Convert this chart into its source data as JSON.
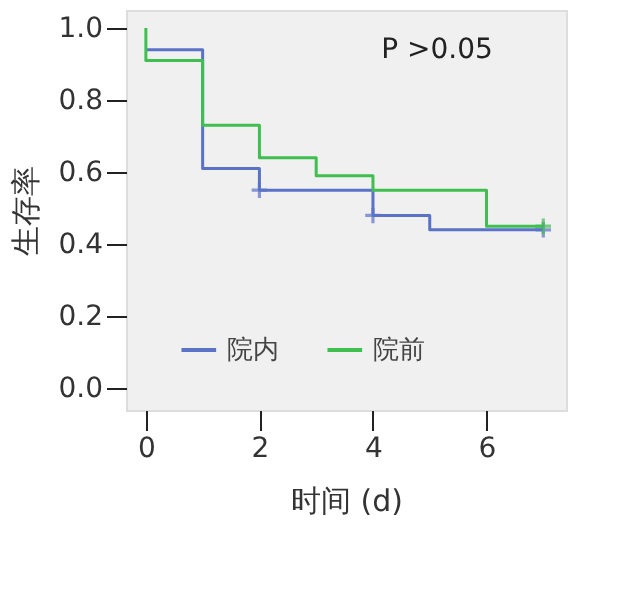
{
  "chart_data": {
    "type": "step",
    "xlabel": "时间 (d)",
    "ylabel": "生存率",
    "annotations": [
      "P >0.05"
    ],
    "series": [
      {
        "name": "院内",
        "color": "#5a72c8",
        "x": [
          0,
          1,
          2,
          4,
          5,
          7
        ],
        "values": [
          0.94,
          0.61,
          0.55,
          0.48,
          0.44,
          0.44
        ]
      },
      {
        "name": "院前",
        "color": "#3fbf4f",
        "x": [
          0,
          0,
          1,
          2,
          3,
          4,
          6,
          7
        ],
        "values": [
          1.0,
          0.91,
          0.73,
          0.64,
          0.59,
          0.55,
          0.45,
          0.45
        ]
      },
      {
        "color": "#5a72c8",
        "type": "scatter",
        "marker": "cross",
        "x": [
          2,
          4,
          7
        ],
        "values": [
          0.55,
          0.48,
          0.44
        ]
      },
      {
        "color": "#3fbf4f",
        "type": "scatter",
        "marker": "cross",
        "x": [
          7
        ],
        "values": [
          0.45
        ]
      }
    ],
    "xlim": [
      -0.35,
      7.4
    ],
    "xticks": [
      0,
      2,
      4,
      6
    ],
    "ylim": [
      -0.06,
      1.05
    ],
    "yticks": [
      {
        "value": 0,
        "label": "0.0"
      },
      {
        "value": 0.2,
        "label": "0.2"
      },
      {
        "value": 0.4,
        "label": "0.4"
      },
      {
        "value": 0.6,
        "label": "0.6"
      },
      {
        "value": 0.8,
        "label": "0.8"
      },
      {
        "value": 1,
        "label": "1.0"
      }
    ],
    "grid": false,
    "legend": "bottom"
  }
}
